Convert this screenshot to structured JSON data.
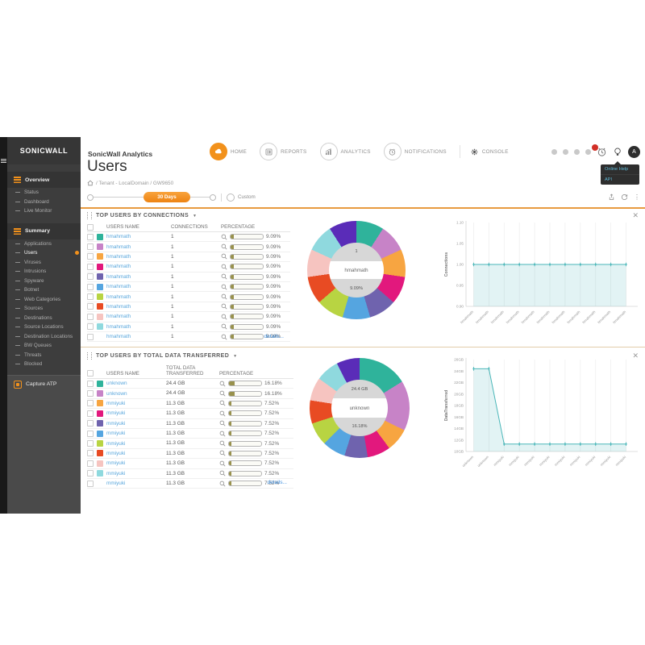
{
  "brand": {
    "app_title": "SonicWall Analytics"
  },
  "topnav": {
    "items": [
      {
        "label": "HOME"
      },
      {
        "label": "REPORTS"
      },
      {
        "label": "ANALYTICS"
      },
      {
        "label": "NOTIFICATIONS"
      },
      {
        "label": "CONSOLE"
      }
    ]
  },
  "userbar": {
    "avatar_initial": "A"
  },
  "help_menu": {
    "items": [
      {
        "label": "Online Help"
      },
      {
        "label": "API"
      }
    ]
  },
  "sidebar": {
    "logo": "SONICWALL",
    "groups": [
      {
        "header": "Overview",
        "items": [
          {
            "label": "Status",
            "active": false
          },
          {
            "label": "Dashboard",
            "active": false
          },
          {
            "label": "Live Monitor",
            "active": false
          }
        ]
      },
      {
        "header": "Summary",
        "items": [
          {
            "label": "Applications",
            "active": false
          },
          {
            "label": "Users",
            "active": true
          },
          {
            "label": "Viruses",
            "active": false
          },
          {
            "label": "Intrusions",
            "active": false
          },
          {
            "label": "Spyware",
            "active": false
          },
          {
            "label": "Botnet",
            "active": false
          },
          {
            "label": "Web Categories",
            "active": false
          },
          {
            "label": "Sources",
            "active": false
          },
          {
            "label": "Destinations",
            "active": false
          },
          {
            "label": "Source Locations",
            "active": false
          },
          {
            "label": "Destination Locations",
            "active": false
          },
          {
            "label": "BW Queues",
            "active": false
          },
          {
            "label": "Threats",
            "active": false
          },
          {
            "label": "Blocked",
            "active": false
          }
        ]
      }
    ],
    "footer_item": "Capture ATP"
  },
  "page": {
    "title": "Users",
    "breadcrumb": "/ Tenant - LocalDomain / GW9650"
  },
  "timebar": {
    "range_label": "30 Days",
    "custom_label": "Custom"
  },
  "icons": {
    "close": "✕",
    "caret": "▼",
    "kebab": "⋮"
  },
  "sections": [
    {
      "title": "TOP USERS BY CONNECTIONS",
      "details_label": "details...",
      "columns": {
        "name": "USERS NAME",
        "value": "CONNECTIONS",
        "pct": "PERCENTAGE"
      },
      "rows": [
        {
          "name": "hmahmath",
          "value": "1",
          "pct": "9.09%",
          "pct_num": 9.09,
          "color": "#2FB39B",
          "active": false
        },
        {
          "name": "hmahmath",
          "value": "1",
          "pct": "9.09%",
          "pct_num": 9.09,
          "color": "#C783C7",
          "active": false
        },
        {
          "name": "hmahmath",
          "value": "1",
          "pct": "9.09%",
          "pct_num": 9.09,
          "color": "#F7A541",
          "active": false
        },
        {
          "name": "hmahmath",
          "value": "1",
          "pct": "9.09%",
          "pct_num": 9.09,
          "color": "#E2187D",
          "active": false
        },
        {
          "name": "hmahmath",
          "value": "1",
          "pct": "9.09%",
          "pct_num": 9.09,
          "color": "#6F63AE",
          "active": false
        },
        {
          "name": "hmahmath",
          "value": "1",
          "pct": "9.09%",
          "pct_num": 9.09,
          "color": "#55A5E0",
          "active": false
        },
        {
          "name": "hmahmath",
          "value": "1",
          "pct": "9.09%",
          "pct_num": 9.09,
          "color": "#B8D442",
          "active": false
        },
        {
          "name": "hmahmath",
          "value": "1",
          "pct": "9.09%",
          "pct_num": 9.09,
          "color": "#E84B23",
          "active": false
        },
        {
          "name": "hmahmath",
          "value": "1",
          "pct": "9.09%",
          "pct_num": 9.09,
          "color": "#F6C4C0",
          "active": false
        },
        {
          "name": "hmahmath",
          "value": "1",
          "pct": "9.09%",
          "pct_num": 9.09,
          "color": "#8FD9DE",
          "active": false
        },
        {
          "name": "hmahmath",
          "value": "1",
          "pct": "9.09%",
          "pct_num": 9.09,
          "color": null,
          "active": false
        }
      ]
    },
    {
      "title": "TOP USERS BY TOTAL DATA TRANSFERRED",
      "details_label": "details...",
      "columns": {
        "name": "USERS NAME",
        "value": "TOTAL DATA TRANSFERRED",
        "pct": "PERCENTAGE"
      },
      "rows": [
        {
          "name": "unknown",
          "value": "24.4 GB",
          "pct": "16.18%",
          "pct_num": 16.18,
          "color": "#2FB39B",
          "active": false
        },
        {
          "name": "unknown",
          "value": "24.4 GB",
          "pct": "16.18%",
          "pct_num": 16.18,
          "color": "#C783C7",
          "active": false
        },
        {
          "name": "mmiyuki",
          "value": "11.3 GB",
          "pct": "7.52%",
          "pct_num": 7.52,
          "color": "#F7A541",
          "active": false
        },
        {
          "name": "mmiyuki",
          "value": "11.3 GB",
          "pct": "7.52%",
          "pct_num": 7.52,
          "color": "#E2187D",
          "active": false
        },
        {
          "name": "mmiyuki",
          "value": "11.3 GB",
          "pct": "7.52%",
          "pct_num": 7.52,
          "color": "#6F63AE",
          "active": false
        },
        {
          "name": "mmiyuki",
          "value": "11.3 GB",
          "pct": "7.52%",
          "pct_num": 7.52,
          "color": "#55A5E0",
          "active": false
        },
        {
          "name": "mmiyuki",
          "value": "11.3 GB",
          "pct": "7.52%",
          "pct_num": 7.52,
          "color": "#B8D442",
          "active": false
        },
        {
          "name": "mmiyuki",
          "value": "11.3 GB",
          "pct": "7.52%",
          "pct_num": 7.52,
          "color": "#E84B23",
          "active": false
        },
        {
          "name": "mmiyuki",
          "value": "11.3 GB",
          "pct": "7.52%",
          "pct_num": 7.52,
          "color": "#F6C4C0",
          "active": false
        },
        {
          "name": "mmiyuki",
          "value": "11.3 GB",
          "pct": "7.52%",
          "pct_num": 7.52,
          "color": "#8FD9DE",
          "active": false
        },
        {
          "name": "mmiyuki",
          "value": "11.3 GB",
          "pct": "7.52%",
          "pct_num": 7.52,
          "color": null,
          "active": false
        }
      ]
    }
  ],
  "chart_data": [
    {
      "type": "pie",
      "title": "TOP USERS BY CONNECTIONS",
      "center": {
        "value": "1",
        "name": "hmahmath",
        "percent": "9.09%"
      },
      "segments": [
        {
          "label": "hmahmath",
          "value": 9.09,
          "color": "#2FB39B"
        },
        {
          "label": "hmahmath",
          "value": 9.09,
          "color": "#C783C7"
        },
        {
          "label": "hmahmath",
          "value": 9.09,
          "color": "#F7A541"
        },
        {
          "label": "hmahmath",
          "value": 9.09,
          "color": "#E2187D"
        },
        {
          "label": "hmahmath",
          "value": 9.09,
          "color": "#6F63AE"
        },
        {
          "label": "hmahmath",
          "value": 9.09,
          "color": "#55A5E0"
        },
        {
          "label": "hmahmath",
          "value": 9.09,
          "color": "#B8D442"
        },
        {
          "label": "hmahmath",
          "value": 9.09,
          "color": "#E84B23"
        },
        {
          "label": "hmahmath",
          "value": 9.09,
          "color": "#F6C4C0"
        },
        {
          "label": "hmahmath",
          "value": 9.09,
          "color": "#8FD9DE"
        },
        {
          "label": "hmahmath",
          "value": 9.09,
          "color": "#5A2CB8"
        }
      ]
    },
    {
      "type": "area",
      "ylabel": "Connections",
      "ylim": [
        0.9,
        1.1
      ],
      "y_ticks": [
        "1.10",
        "1.05",
        "1.00",
        "0.95",
        "0.90"
      ],
      "x": [
        "hmahmath",
        "hmahmath",
        "hmahmath",
        "hmahmath",
        "hmahmath",
        "hmahmath",
        "hmahmath",
        "hmahmath",
        "hmahmath",
        "hmahmath",
        "hmahmath"
      ],
      "values": [
        1.0,
        1.0,
        1.0,
        1.0,
        1.0,
        1.0,
        1.0,
        1.0,
        1.0,
        1.0,
        1.0
      ],
      "color": "#4ab6b8",
      "fill": "rgba(74,182,184,0.16)",
      "grid": true
    },
    {
      "type": "pie",
      "title": "TOP USERS BY TOTAL DATA TRANSFERRED",
      "center": {
        "value": "24.4 GB",
        "name": "unknown",
        "percent": "16.18%"
      },
      "segments": [
        {
          "label": "unknown",
          "value": 16.18,
          "color": "#2FB39B"
        },
        {
          "label": "unknown",
          "value": 16.18,
          "color": "#C783C7"
        },
        {
          "label": "mmiyuki",
          "value": 7.52,
          "color": "#F7A541"
        },
        {
          "label": "mmiyuki",
          "value": 7.52,
          "color": "#E2187D"
        },
        {
          "label": "mmiyuki",
          "value": 7.52,
          "color": "#6F63AE"
        },
        {
          "label": "mmiyuki",
          "value": 7.52,
          "color": "#55A5E0"
        },
        {
          "label": "mmiyuki",
          "value": 7.52,
          "color": "#B8D442"
        },
        {
          "label": "mmiyuki",
          "value": 7.52,
          "color": "#E84B23"
        },
        {
          "label": "mmiyuki",
          "value": 7.52,
          "color": "#F6C4C0"
        },
        {
          "label": "mmiyuki",
          "value": 7.52,
          "color": "#8FD9DE"
        },
        {
          "label": "mmiyuki",
          "value": 7.52,
          "color": "#5A2CB8"
        }
      ]
    },
    {
      "type": "area",
      "ylabel": "DataTransferred",
      "ylim": [
        10,
        26
      ],
      "y_ticks": [
        "26GB",
        "24GB",
        "22GB",
        "20GB",
        "18GB",
        "16GB",
        "14GB",
        "12GB",
        "10GB"
      ],
      "x": [
        "unknown",
        "unknown",
        "mmiyuki",
        "mmiyuki",
        "mmiyuki",
        "mmiyuki",
        "mmiyuki",
        "mmiyuki",
        "mmiyuki",
        "mmiyuki",
        "mmiyuki"
      ],
      "values": [
        24.4,
        24.4,
        11.3,
        11.3,
        11.3,
        11.3,
        11.3,
        11.3,
        11.3,
        11.3,
        11.3
      ],
      "color": "#4ab6b8",
      "fill": "rgba(74,182,184,0.16)",
      "grid": true
    }
  ]
}
